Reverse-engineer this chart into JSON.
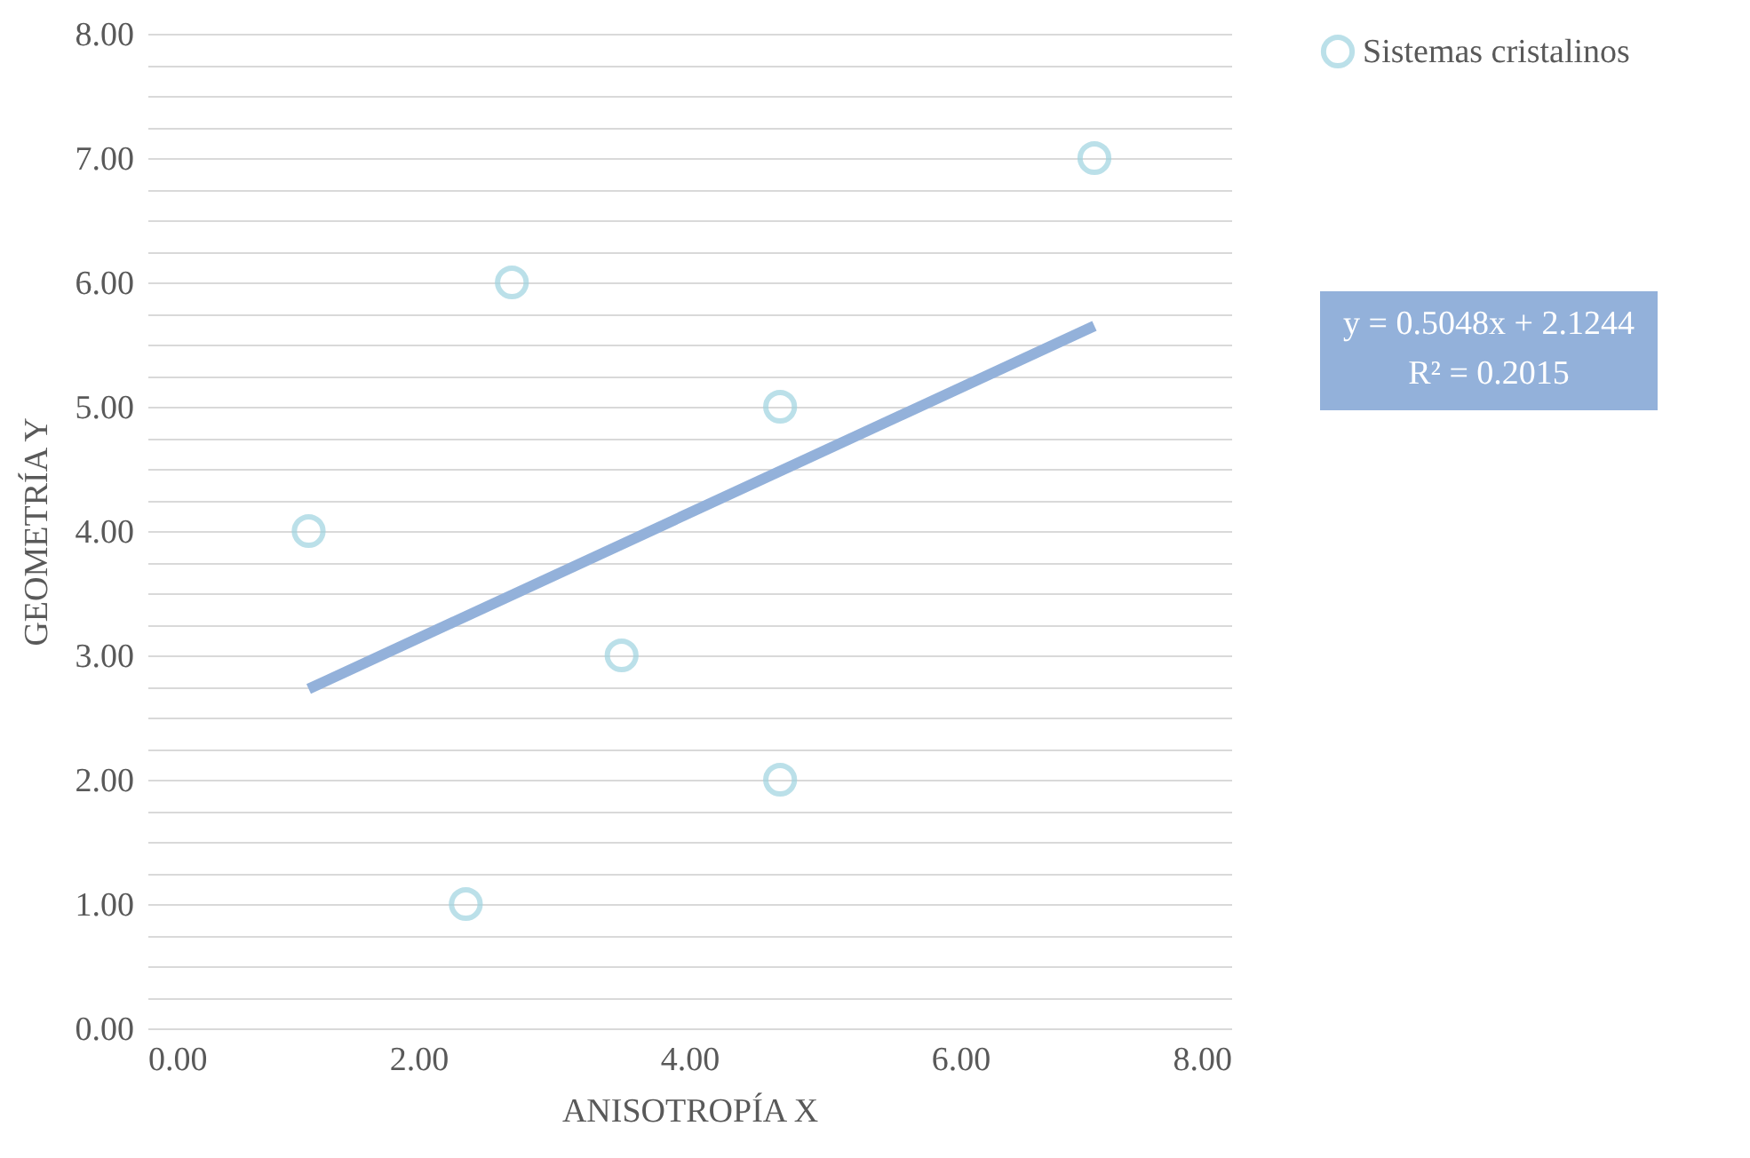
{
  "chart_data": {
    "type": "scatter",
    "xlabel": "ANISOTROPÍA X",
    "ylabel": "GEOMETRÍA Y",
    "x": [
      1.19,
      2.35,
      2.69,
      3.5,
      4.67,
      4.67,
      6.99
    ],
    "series": [
      {
        "name": "Sistemas cristalinos",
        "color": "#9fd4e0",
        "values": [
          4,
          1,
          6,
          3,
          5,
          2,
          7
        ],
        "marker": "circle"
      },
      {
        "type": "line",
        "color": "#93b1da",
        "x": [
          1.19,
          6.99
        ],
        "values": [
          2.73,
          5.65
        ],
        "line_style": "solid"
      }
    ],
    "xlim": [
      0,
      8
    ],
    "ylim": [
      0,
      8
    ],
    "xticks": [
      {
        "value": 0,
        "label": "0.00"
      },
      {
        "value": 2,
        "label": "2.00"
      },
      {
        "value": 4,
        "label": "4.00"
      },
      {
        "value": 6,
        "label": "6.00"
      },
      {
        "value": 8,
        "label": "8.00"
      }
    ],
    "yticks": [
      {
        "value": 0,
        "label": "0.00"
      },
      {
        "value": 0.25,
        "label": null
      },
      {
        "value": 0.5,
        "label": null
      },
      {
        "value": 0.75,
        "label": null
      },
      {
        "value": 1,
        "label": "1.00"
      },
      {
        "value": 1.25,
        "label": null
      },
      {
        "value": 1.5,
        "label": null
      },
      {
        "value": 1.75,
        "label": null
      },
      {
        "value": 2,
        "label": "2.00"
      },
      {
        "value": 2.25,
        "label": null
      },
      {
        "value": 2.5,
        "label": null
      },
      {
        "value": 2.75,
        "label": null
      },
      {
        "value": 3,
        "label": "3.00"
      },
      {
        "value": 3.25,
        "label": null
      },
      {
        "value": 3.5,
        "label": null
      },
      {
        "value": 3.75,
        "label": null
      },
      {
        "value": 4,
        "label": "4.00"
      },
      {
        "value": 4.25,
        "label": null
      },
      {
        "value": 4.5,
        "label": null
      },
      {
        "value": 4.75,
        "label": null
      },
      {
        "value": 5,
        "label": "5.00"
      },
      {
        "value": 5.25,
        "label": null
      },
      {
        "value": 5.5,
        "label": null
      },
      {
        "value": 5.75,
        "label": null
      },
      {
        "value": 6,
        "label": "6.00"
      },
      {
        "value": 6.25,
        "label": null
      },
      {
        "value": 6.5,
        "label": null
      },
      {
        "value": 6.75,
        "label": null
      },
      {
        "value": 7,
        "label": "7.00"
      },
      {
        "value": 7.25,
        "label": null
      },
      {
        "value": 7.5,
        "label": null
      },
      {
        "value": 7.75,
        "label": null
      },
      {
        "value": 8,
        "label": "8.00"
      }
    ],
    "grid": "y",
    "legend": "right",
    "annotations": [
      "y = 0.5048x + 2.1244",
      "R² = 0.2015"
    ]
  }
}
